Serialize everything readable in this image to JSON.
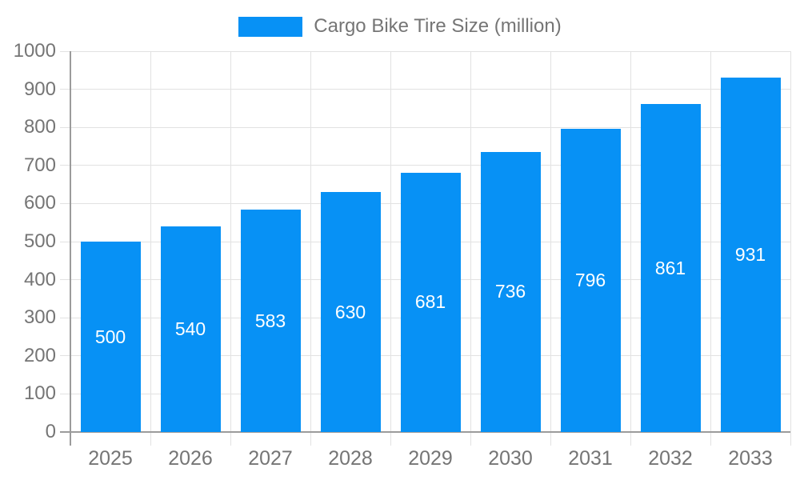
{
  "legend": {
    "label": "Cargo Bike Tire Size (million)"
  },
  "chart_data": {
    "type": "bar",
    "title": "Cargo Bike Tire Size (million)",
    "series_name": "Cargo Bike Tire Size (million)",
    "categories": [
      "2025",
      "2026",
      "2027",
      "2028",
      "2029",
      "2030",
      "2031",
      "2032",
      "2033"
    ],
    "values": [
      500,
      540,
      583,
      630,
      681,
      736,
      796,
      861,
      931
    ],
    "xlabel": "",
    "ylabel": "",
    "ylim": [
      0,
      1000
    ],
    "y_ticks": [
      0,
      100,
      200,
      300,
      400,
      500,
      600,
      700,
      800,
      900,
      1000
    ],
    "grid": true,
    "legend_position": "top",
    "bar_labels_inside": true,
    "colors": {
      "bar": "#0791f5",
      "bar_label": "#ffffff",
      "axis_line": "#9b9b9b",
      "gridline": "#e2e2e2",
      "tick_label": "#757575",
      "background": "#ffffff"
    }
  }
}
